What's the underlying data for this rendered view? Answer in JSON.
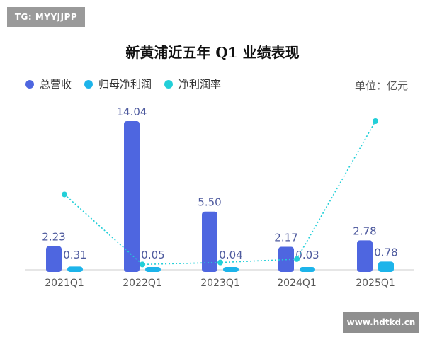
{
  "watermark_top": "TG: MYYJJPP",
  "watermark_bottom": "www.hdtkd.cn",
  "title": "新黄浦近五年 Q1 业绩表现",
  "unit_label": "单位：亿元",
  "colors": {
    "revenue": "#4e66e0",
    "profit": "#1db4ea",
    "margin": "#22cfd8",
    "axis": "#cccccc",
    "label": "#4e5a9e",
    "tick": "#555555"
  },
  "legend": [
    {
      "name": "总营收",
      "color": "#4e66e0"
    },
    {
      "name": "归母净利润",
      "color": "#1db4ea"
    },
    {
      "name": "净利润率",
      "color": "#22cfd8"
    }
  ],
  "chart_data": {
    "type": "bar",
    "title": "新黄浦近五年 Q1 业绩表现",
    "categories": [
      "2021Q1",
      "2022Q1",
      "2023Q1",
      "2024Q1",
      "2025Q1"
    ],
    "series": [
      {
        "name": "总营收",
        "type": "bar",
        "values": [
          2.23,
          14.04,
          5.5,
          2.17,
          2.78
        ],
        "labels": [
          "2.23",
          "14.04",
          "5.50",
          "2.17",
          "2.78"
        ]
      },
      {
        "name": "归母净利润",
        "type": "bar",
        "values": [
          0.31,
          0.05,
          0.04,
          0.03,
          0.78
        ],
        "labels": [
          "0.31",
          "0.05",
          "0.04",
          "0.03",
          "0.78"
        ]
      },
      {
        "name": "净利润率",
        "type": "line",
        "values": [
          13.9,
          0.36,
          0.73,
          1.38,
          28.06
        ]
      }
    ],
    "ylim": [
      0,
      14.04
    ],
    "grid": false,
    "legend_position": "top-left",
    "unit": "亿元"
  }
}
